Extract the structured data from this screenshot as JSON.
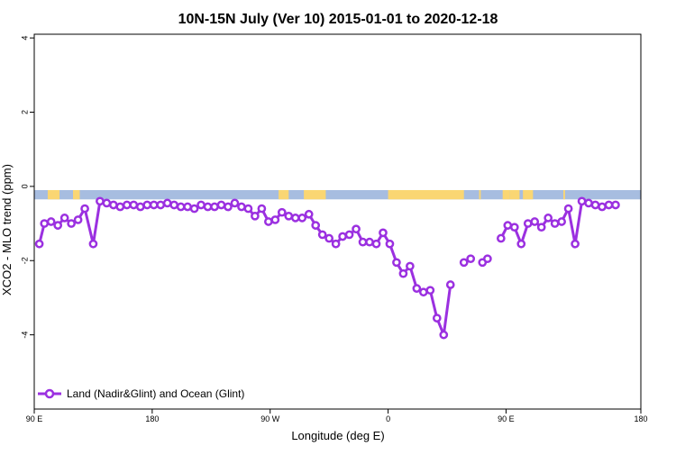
{
  "chart_data": {
    "type": "line",
    "title": "10N-15N July (Ver 10)   2015-01-01 to 2020-12-18",
    "xlabel": "Longitude (deg E)",
    "ylabel": "XCO2 - MLO trend (ppm)",
    "xlim": [
      90,
      450
    ],
    "ylim": [
      -6,
      4.1
    ],
    "x_ticks": [
      {
        "value": 90,
        "label": "90 E"
      },
      {
        "value": 160,
        "label": "180"
      },
      {
        "value": 230,
        "label": "90 W"
      },
      {
        "value": 300,
        "label": "0"
      },
      {
        "value": 370,
        "label": "90 E"
      },
      {
        "value": 450,
        "label": "180"
      }
    ],
    "y_ticks": [
      {
        "value": 4,
        "label": "4"
      },
      {
        "value": 2,
        "label": "2"
      },
      {
        "value": 0,
        "label": "0"
      },
      {
        "value": -2,
        "label": "-2"
      },
      {
        "value": -4,
        "label": "-4"
      }
    ],
    "grid": false,
    "legend_position": "bottom-left",
    "land_band": {
      "y_range": [
        -0.1,
        -0.35
      ],
      "ocean_color": "#a7bde0",
      "land_color": "#fad673",
      "land_segments": [
        [
          98,
          105
        ],
        [
          113,
          117
        ],
        [
          235,
          241
        ],
        [
          250,
          263
        ],
        [
          300,
          345
        ],
        [
          354,
          355
        ],
        [
          368,
          372
        ],
        [
          372,
          378
        ],
        [
          380,
          386
        ],
        [
          404,
          405
        ]
      ]
    },
    "series": [
      {
        "name": "Land (Nadir&Glint) and Ocean (Glint)",
        "color": "#9b30e0",
        "x": [
          93,
          96,
          100,
          104,
          108,
          112,
          116,
          120,
          125,
          129,
          133,
          137,
          141,
          145,
          149,
          153,
          157,
          161,
          165,
          169,
          173,
          177,
          181,
          185,
          189,
          193,
          197,
          201,
          205,
          209,
          213,
          217,
          221,
          225,
          229,
          233,
          237,
          241,
          245,
          249,
          253,
          257,
          261,
          265,
          269,
          273,
          277,
          281,
          285,
          289,
          293,
          297,
          301,
          305,
          309,
          313,
          317,
          321,
          325,
          329,
          333,
          337,
          341,
          345,
          349,
          353,
          356,
          359,
          363,
          367,
          371,
          375,
          379,
          383,
          387,
          391,
          395,
          399,
          403,
          407,
          411,
          415,
          419,
          423,
          427,
          431,
          435
        ],
        "y": [
          -1.55,
          -1.0,
          -0.95,
          -1.05,
          -0.85,
          -1.0,
          -0.9,
          -0.6,
          -1.55,
          -0.4,
          -0.45,
          -0.5,
          -0.55,
          -0.5,
          -0.5,
          -0.55,
          -0.5,
          -0.5,
          -0.5,
          -0.45,
          -0.5,
          -0.55,
          -0.55,
          -0.6,
          -0.5,
          -0.55,
          -0.55,
          -0.5,
          -0.55,
          -0.45,
          -0.55,
          -0.6,
          -0.8,
          -0.6,
          -0.95,
          -0.9,
          -0.7,
          -0.8,
          -0.85,
          -0.85,
          -0.75,
          -1.05,
          -1.3,
          -1.4,
          -1.55,
          -1.35,
          -1.3,
          -1.15,
          -1.5,
          -1.5,
          -1.55,
          -1.25,
          -1.55,
          -2.05,
          -2.35,
          -2.15,
          -2.75,
          -2.85,
          -2.8,
          -3.55,
          -4.0,
          -2.65,
          null,
          -2.05,
          -1.95,
          null,
          -2.05,
          -1.95,
          null,
          -1.4,
          -1.05,
          -1.1,
          -1.55,
          -1.0,
          -0.95,
          -1.1,
          -0.85,
          -1.0,
          -0.95,
          -0.6,
          -1.55,
          -0.4,
          -0.45,
          -0.5,
          -0.55,
          -0.5,
          -0.5
        ]
      }
    ]
  }
}
